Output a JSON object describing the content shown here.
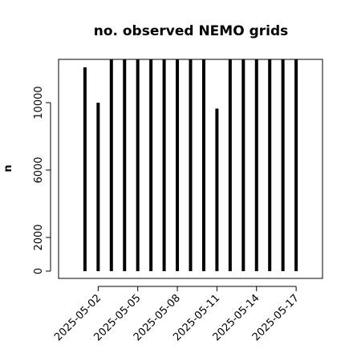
{
  "chart_data": {
    "type": "bar",
    "title": "no. observed NEMO grids",
    "y_label": "n",
    "x": [
      "2025-05-01",
      "2025-05-02",
      "2025-05-03",
      "2025-05-04",
      "2025-05-05",
      "2025-05-06",
      "2025-05-07",
      "2025-05-08",
      "2025-05-09",
      "2025-05-10",
      "2025-05-11",
      "2025-05-12",
      "2025-05-13",
      "2025-05-14",
      "2025-05-15",
      "2025-05-16",
      "2025-05-17"
    ],
    "values": [
      12100,
      10000,
      12570,
      12570,
      12570,
      12570,
      12570,
      12570,
      12570,
      12570,
      9650,
      12570,
      12570,
      12570,
      12570,
      12570,
      12570
    ],
    "color": "#000000",
    "xlim": [
      "2025-04-29",
      "2025-05-19"
    ],
    "xticks": [
      "2025-05-02",
      "2025-05-05",
      "2025-05-08",
      "2025-05-11",
      "2025-05-14",
      "2025-05-17"
    ],
    "ylim": [
      -430,
      12570
    ],
    "yticks": [
      0,
      2000,
      6000,
      10000
    ]
  }
}
